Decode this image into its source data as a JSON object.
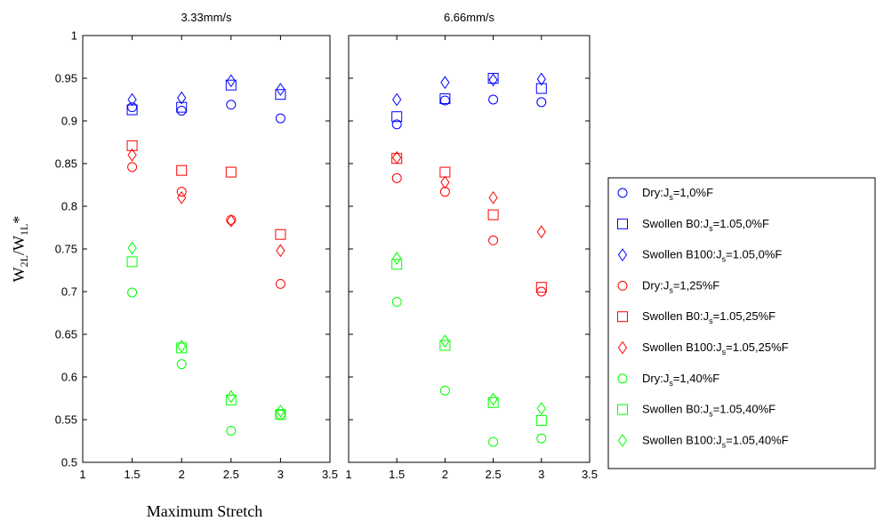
{
  "chart_data": {
    "type": "scatter",
    "ylabel": "W2L/W1L*",
    "xlabel": "Maximum  Stretch",
    "xlim": [
      1,
      3.5
    ],
    "ylim": [
      0.5,
      1
    ],
    "xticks": [
      "1",
      "1.5",
      "2",
      "2.5",
      "3",
      "3.5"
    ],
    "yticks": [
      "0.5",
      "0.55",
      "0.6",
      "0.65",
      "0.7",
      "0.75",
      "0.8",
      "0.85",
      "0.9",
      "0.95",
      "1"
    ],
    "legend_placement": "right",
    "legend": [
      {
        "label": "Dry:J",
        "sub": "s",
        "tail": "=1,0%F",
        "color": "#0000ff",
        "marker": "circle"
      },
      {
        "label": "Swollen B0:J",
        "sub": "s",
        "tail": "=1.05,0%F",
        "color": "#0000ff",
        "marker": "square"
      },
      {
        "label": "Swollen B100:J",
        "sub": "s",
        "tail": "=1.05,0%F",
        "color": "#0000ff",
        "marker": "diamond"
      },
      {
        "label": "Dry:J",
        "sub": "s",
        "tail": "=1,25%F",
        "color": "#ff0000",
        "marker": "circle"
      },
      {
        "label": "Swollen B0:J",
        "sub": "s",
        "tail": "=1.05,25%F",
        "color": "#ff0000",
        "marker": "square"
      },
      {
        "label": "Swollen B100:J",
        "sub": "s",
        "tail": "=1.05,25%F",
        "color": "#ff0000",
        "marker": "diamond"
      },
      {
        "label": "Dry:J",
        "sub": "s",
        "tail": "=1,40%F",
        "color": "#00ff00",
        "marker": "circle"
      },
      {
        "label": "Swollen B0:J",
        "sub": "s",
        "tail": "=1.05,40%F",
        "color": "#00ff00",
        "marker": "square"
      },
      {
        "label": "Swollen B100:J",
        "sub": "s",
        "tail": "=1.05,40%F",
        "color": "#00ff00",
        "marker": "diamond"
      }
    ],
    "panels": [
      {
        "title": "3.33mm/s",
        "x": [
          1.5,
          2,
          2.5,
          3
        ],
        "series": [
          {
            "values": [
              0.916,
              0.912,
              0.919,
              0.903
            ]
          },
          {
            "values": [
              0.913,
              0.916,
              0.942,
              0.931
            ]
          },
          {
            "values": [
              0.925,
              0.927,
              0.947,
              0.937
            ]
          },
          {
            "values": [
              0.846,
              0.817,
              0.784,
              0.709
            ]
          },
          {
            "values": [
              0.871,
              0.842,
              0.84,
              0.767
            ]
          },
          {
            "values": [
              0.86,
              0.81,
              0.783,
              0.748
            ]
          },
          {
            "values": [
              0.699,
              0.615,
              0.537,
              0.556
            ]
          },
          {
            "values": [
              0.735,
              0.634,
              0.573,
              0.556
            ]
          },
          {
            "values": [
              0.751,
              0.636,
              0.577,
              0.56
            ]
          }
        ]
      },
      {
        "title": "6.66mm/s",
        "x": [
          1.5,
          2,
          2.5,
          3
        ],
        "series": [
          {
            "values": [
              0.896,
              0.924,
              0.925,
              0.922
            ]
          },
          {
            "values": [
              0.905,
              0.926,
              0.95,
              0.938
            ]
          },
          {
            "values": [
              0.925,
              0.945,
              0.948,
              0.949
            ]
          },
          {
            "values": [
              0.833,
              0.817,
              0.76,
              0.7
            ]
          },
          {
            "values": [
              0.856,
              0.84,
              0.79,
              0.705
            ]
          },
          {
            "values": [
              0.857,
              0.828,
              0.81,
              0.77
            ]
          },
          {
            "values": [
              0.688,
              0.584,
              0.524,
              0.528
            ]
          },
          {
            "values": [
              0.732,
              0.637,
              0.57,
              0.549
            ]
          },
          {
            "values": [
              0.739,
              0.642,
              0.574,
              0.563
            ]
          }
        ]
      }
    ]
  }
}
